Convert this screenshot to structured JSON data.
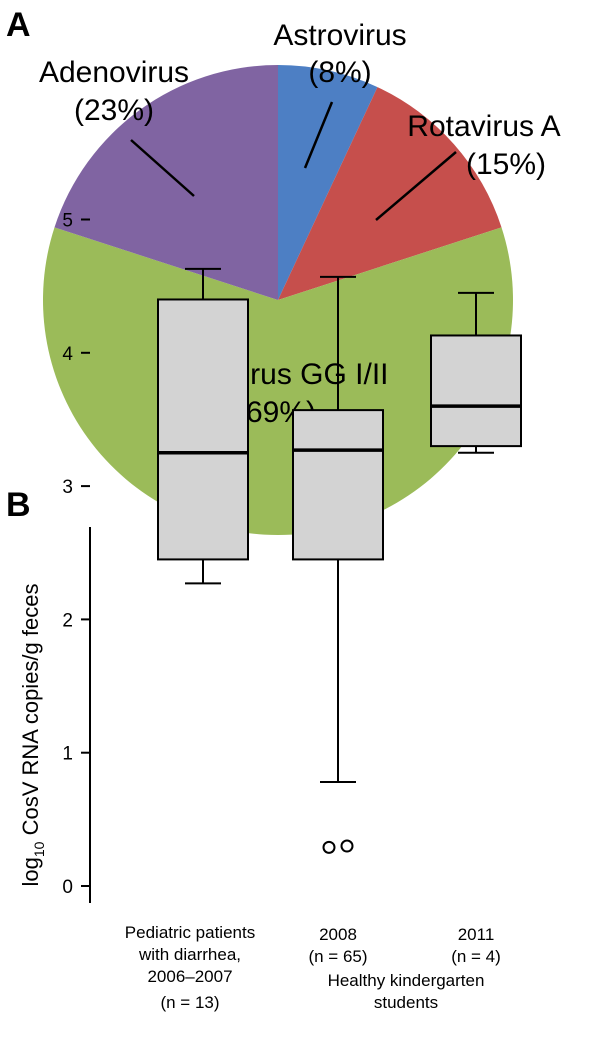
{
  "chart_data": [
    {
      "panel": "A",
      "type": "pie",
      "slices": [
        {
          "label": "Astrovirus",
          "pct_label": "(8%)",
          "value": 8,
          "color": "#4d7fc4"
        },
        {
          "label": "Rotavirus A",
          "pct_label": "(15%)",
          "value": 15,
          "color": "#c64f4c"
        },
        {
          "label": "Norovirus GG I/II",
          "pct_label": "(69%)",
          "value": 69,
          "color": "#9bbb59"
        },
        {
          "label": "Adenovirus",
          "pct_label": "(23%)",
          "value": 23,
          "color": "#8064a2"
        }
      ]
    },
    {
      "panel": "B",
      "type": "box",
      "ylabel_main": "log",
      "ylabel_sub": "10",
      "ylabel_rest": " CosV RNA copies/g feces",
      "ylim": [
        0,
        5
      ],
      "yticks": [
        "0",
        "1",
        "2",
        "3",
        "4",
        "5"
      ],
      "box_color": "#d3d3d3",
      "groups": [
        {
          "lines": [
            "Pediatric patients",
            "with diarrhea,",
            "2006–2007",
            "(n = 13)"
          ],
          "min": 2.27,
          "q1": 2.45,
          "median": 3.25,
          "q3": 4.4,
          "max": 4.63,
          "outliers": []
        },
        {
          "lines": [
            "2008",
            "(n = 65)"
          ],
          "min": 0.78,
          "q1": 2.45,
          "median": 3.27,
          "q3": 3.57,
          "max": 4.57,
          "outliers": [
            0.29,
            0.3
          ]
        },
        {
          "lines": [
            "2011",
            "(n = 4)"
          ],
          "min": 3.25,
          "q1": 3.3,
          "median": 3.6,
          "q3": 4.13,
          "max": 4.45,
          "outliers": []
        }
      ],
      "group_caption": [
        "Healthy kindergarten",
        "students"
      ]
    }
  ]
}
